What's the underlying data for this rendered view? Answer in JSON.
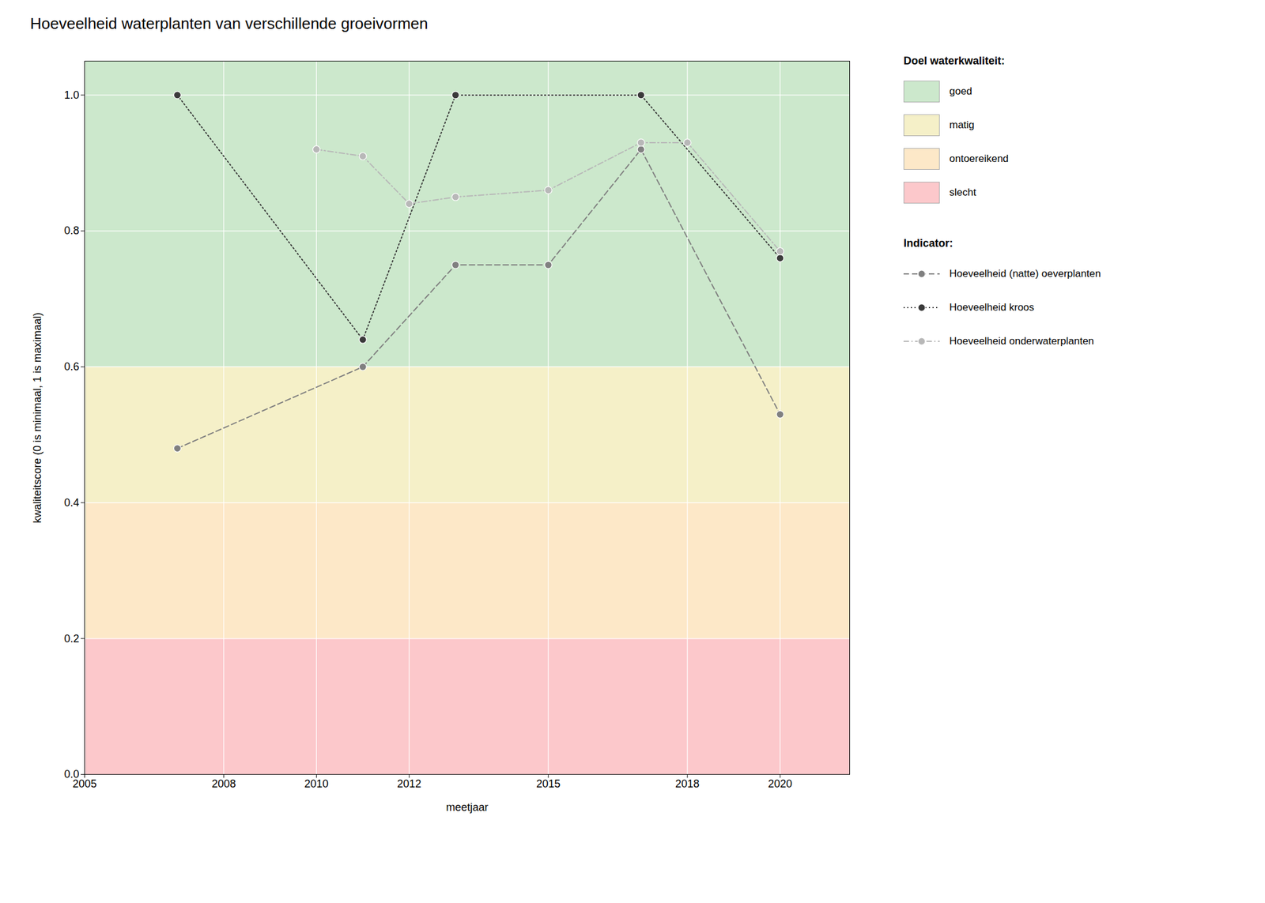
{
  "chart_data": {
    "type": "line",
    "title": "Hoeveelheid waterplanten van verschillende groeivormen",
    "xlabel": "meetjaar",
    "ylabel": "kwaliteitscore (0 is minimaal, 1 is maximaal)",
    "xlim": [
      2005,
      2021.5
    ],
    "ylim": [
      0.0,
      1.05
    ],
    "xticks": [
      2005,
      2008,
      2010,
      2012,
      2015,
      2018,
      2020
    ],
    "yticks": [
      {
        "value": 0,
        "label": "0.0"
      },
      0.2,
      0.4,
      0.6,
      0.8,
      {
        "value": 1,
        "label": "1.0"
      }
    ],
    "grid": true,
    "bands_title": "Doel waterkwaliteit:",
    "bands": [
      {
        "name": "goed",
        "from": 0.6,
        "to": 1.05,
        "color": "#cce8cc"
      },
      {
        "name": "matig",
        "from": 0.4,
        "to": 0.6,
        "color": "#f5f0c8"
      },
      {
        "name": "ontoereikend",
        "from": 0.2,
        "to": 0.4,
        "color": "#fde8c8"
      },
      {
        "name": "slecht",
        "from": 0.0,
        "to": 0.2,
        "color": "#fcc8cb"
      }
    ],
    "series_title": "Indicator:",
    "series": [
      {
        "name": "Hoeveelheid (natte) oeverplanten",
        "color": "#808080",
        "line_style": "dashed",
        "marker": "circle",
        "x": [
          2007,
          2011,
          2013,
          2015,
          2017,
          2020
        ],
        "values": [
          0.48,
          0.6,
          0.75,
          0.75,
          0.92,
          0.53
        ]
      },
      {
        "name": "Hoeveelheid kroos",
        "color": "#3a3a3a",
        "line_style": "dotted",
        "marker": "circle",
        "x": [
          2007,
          2011,
          2013,
          2017,
          2020
        ],
        "values": [
          1.0,
          0.64,
          1.0,
          1.0,
          0.76
        ]
      },
      {
        "name": "Hoeveelheid onderwaterplanten",
        "color": "#b8b8b8",
        "line_style": "dashdot",
        "marker": "circle",
        "x": [
          2010,
          2011,
          2012,
          2013,
          2015,
          2017,
          2018,
          2020
        ],
        "values": [
          0.92,
          0.91,
          0.84,
          0.85,
          0.86,
          0.93,
          0.93,
          0.77
        ]
      }
    ]
  }
}
